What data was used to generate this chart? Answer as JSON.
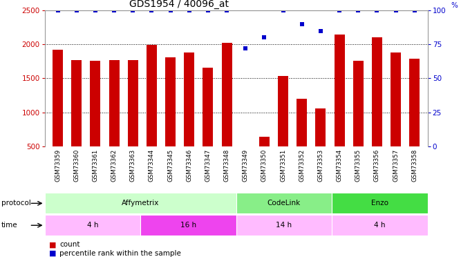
{
  "title": "GDS1954 / 40096_at",
  "samples": [
    "GSM73359",
    "GSM73360",
    "GSM73361",
    "GSM73362",
    "GSM73363",
    "GSM73344",
    "GSM73345",
    "GSM73346",
    "GSM73347",
    "GSM73348",
    "GSM73349",
    "GSM73350",
    "GSM73351",
    "GSM73352",
    "GSM73353",
    "GSM73354",
    "GSM73355",
    "GSM73356",
    "GSM73357",
    "GSM73358"
  ],
  "counts": [
    1920,
    1770,
    1760,
    1770,
    1770,
    1990,
    1810,
    1880,
    1660,
    2020,
    480,
    640,
    1540,
    1200,
    1060,
    2140,
    1760,
    2100,
    1880,
    1790
  ],
  "percentile": [
    100,
    100,
    100,
    100,
    100,
    100,
    100,
    100,
    100,
    100,
    72,
    80,
    100,
    90,
    85,
    100,
    100,
    100,
    100,
    100
  ],
  "ylim_left": [
    500,
    2500
  ],
  "ylim_right": [
    0,
    100
  ],
  "yticks_left": [
    500,
    1000,
    1500,
    2000,
    2500
  ],
  "yticks_right": [
    0,
    25,
    50,
    75,
    100
  ],
  "bar_color": "#cc0000",
  "dot_color": "#0000cc",
  "background_color": "#ffffff",
  "protocol_groups": [
    {
      "label": "Affymetrix",
      "start": 0,
      "end": 10,
      "color": "#ccffcc"
    },
    {
      "label": "CodeLink",
      "start": 10,
      "end": 15,
      "color": "#88ee88"
    },
    {
      "label": "Enzo",
      "start": 15,
      "end": 20,
      "color": "#44dd44"
    }
  ],
  "time_groups": [
    {
      "label": "4 h",
      "start": 0,
      "end": 5,
      "color": "#ffbbff"
    },
    {
      "label": "16 h",
      "start": 5,
      "end": 10,
      "color": "#ee44ee"
    },
    {
      "label": "14 h",
      "start": 10,
      "end": 15,
      "color": "#ffbbff"
    },
    {
      "label": "4 h",
      "start": 15,
      "end": 20,
      "color": "#ffbbff"
    }
  ],
  "left_axis_color": "#cc0000",
  "right_axis_color": "#0000cc",
  "xtick_bg": "#cccccc"
}
